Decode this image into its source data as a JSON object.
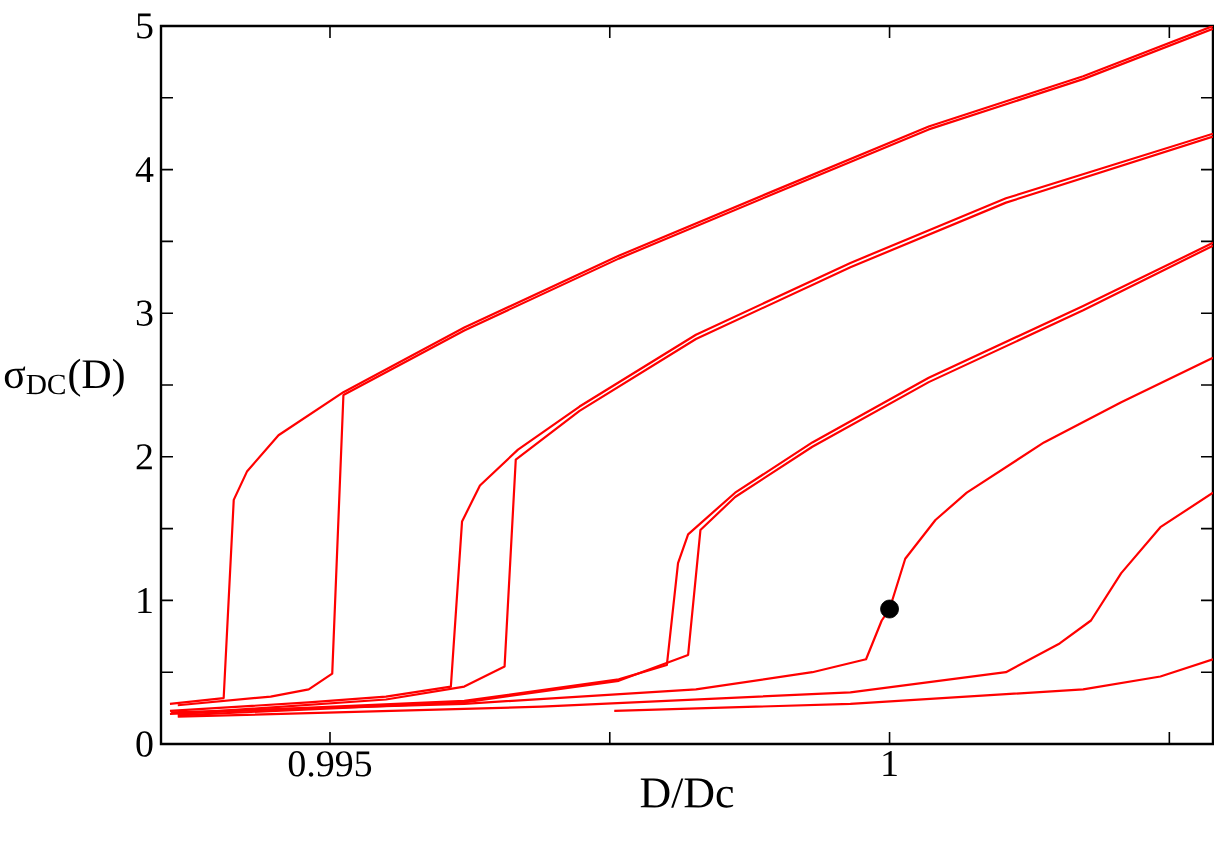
{
  "chart_data": {
    "type": "line",
    "xlabel": "D/Dc",
    "ylabel": "σ$_{DC}$(D)",
    "marker": "none",
    "xlim": [
      0.99349,
      1.00289
    ],
    "ylim": [
      0,
      5
    ],
    "xticks": [
      0.995,
      {
        "value": 0.9975,
        "label": null
      },
      1,
      {
        "value": 1.0025,
        "label": null
      }
    ],
    "yticks": [
      0,
      {
        "value": 0.5,
        "label": null
      },
      1,
      {
        "value": 1.5,
        "label": null
      },
      2,
      {
        "value": 2.5,
        "label": null
      },
      3,
      {
        "value": 3.5,
        "label": null
      },
      4,
      {
        "value": 4.5,
        "label": null
      },
      5
    ],
    "series": [
      {
        "color": "#ff0000",
        "x": [
          0.99357,
          0.99405,
          0.99414,
          0.99426,
          0.99454,
          0.99512,
          0.9962,
          0.99758,
          0.99896,
          1.00035,
          1.00173,
          1.00289
        ],
        "values": [
          0.28,
          0.32,
          1.7,
          1.9,
          2.15,
          2.45,
          2.9,
          3.4,
          3.85,
          4.3,
          4.65,
          5.0
        ]
      },
      {
        "color": "#ff0000",
        "x": [
          0.99364,
          0.99447,
          0.99481,
          0.99502,
          0.99512,
          0.9962,
          0.99758,
          0.99896,
          1.00035,
          1.00173,
          1.00289
        ],
        "values": [
          0.27,
          0.33,
          0.38,
          0.49,
          2.43,
          2.88,
          3.38,
          3.83,
          4.28,
          4.63,
          4.98
        ]
      },
      {
        "color": "#ff0000",
        "x": [
          0.99357,
          0.99481,
          0.9955,
          0.99608,
          0.99618,
          0.99634,
          0.99668,
          0.99723,
          0.99827,
          0.99965,
          1.00104,
          1.00289
        ],
        "values": [
          0.23,
          0.29,
          0.33,
          0.4,
          1.55,
          1.8,
          2.05,
          2.35,
          2.85,
          3.35,
          3.8,
          4.25
        ]
      },
      {
        "color": "#ff0000",
        "x": [
          0.99364,
          0.9955,
          0.9962,
          0.99656,
          0.99666,
          0.99723,
          0.99827,
          0.99965,
          1.00104,
          1.00289
        ],
        "values": [
          0.21,
          0.31,
          0.4,
          0.54,
          1.98,
          2.32,
          2.82,
          3.32,
          3.77,
          4.23
        ]
      },
      {
        "color": "#ff0000",
        "x": [
          0.99357,
          0.9962,
          0.99758,
          0.99801,
          0.99811,
          0.9982,
          0.99862,
          0.99931,
          1.00035,
          1.00173,
          1.00289
        ],
        "values": [
          0.21,
          0.3,
          0.45,
          0.55,
          1.26,
          1.46,
          1.75,
          2.1,
          2.55,
          3.05,
          3.49
        ]
      },
      {
        "color": "#ff0000",
        "x": [
          0.99364,
          0.9962,
          0.99758,
          0.9982,
          0.99831,
          0.99862,
          0.99931,
          1.00035,
          1.00173,
          1.00289
        ],
        "values": [
          0.2,
          0.29,
          0.44,
          0.62,
          1.49,
          1.72,
          2.07,
          2.52,
          3.02,
          3.47
        ]
      },
      {
        "color": "#ff0000",
        "x": [
          0.99358,
          0.9962,
          0.99827,
          0.99931,
          0.99979,
          0.99993,
          1.0,
          1.00014,
          1.00041,
          1.00069,
          1.00138,
          1.00207,
          1.00289
        ],
        "values": [
          0.22,
          0.28,
          0.38,
          0.5,
          0.59,
          0.86,
          0.94,
          1.29,
          1.56,
          1.75,
          2.1,
          2.38,
          2.69
        ]
      },
      {
        "color": "#ff0000",
        "x": [
          0.99364,
          0.99689,
          0.99965,
          1.00104,
          1.00152,
          1.0018,
          1.00207,
          1.00242,
          1.00289
        ],
        "values": [
          0.19,
          0.26,
          0.36,
          0.5,
          0.7,
          0.86,
          1.19,
          1.51,
          1.75
        ]
      },
      {
        "color": "#ff0000",
        "x": [
          0.99754,
          0.99965,
          1.00173,
          1.00242,
          1.00289
        ],
        "values": [
          0.23,
          0.28,
          0.38,
          0.47,
          0.59
        ]
      },
      {
        "type": "scatter",
        "marker": "circle",
        "color": "#000000",
        "x": [
          1.0
        ],
        "values": [
          0.94
        ]
      }
    ]
  }
}
